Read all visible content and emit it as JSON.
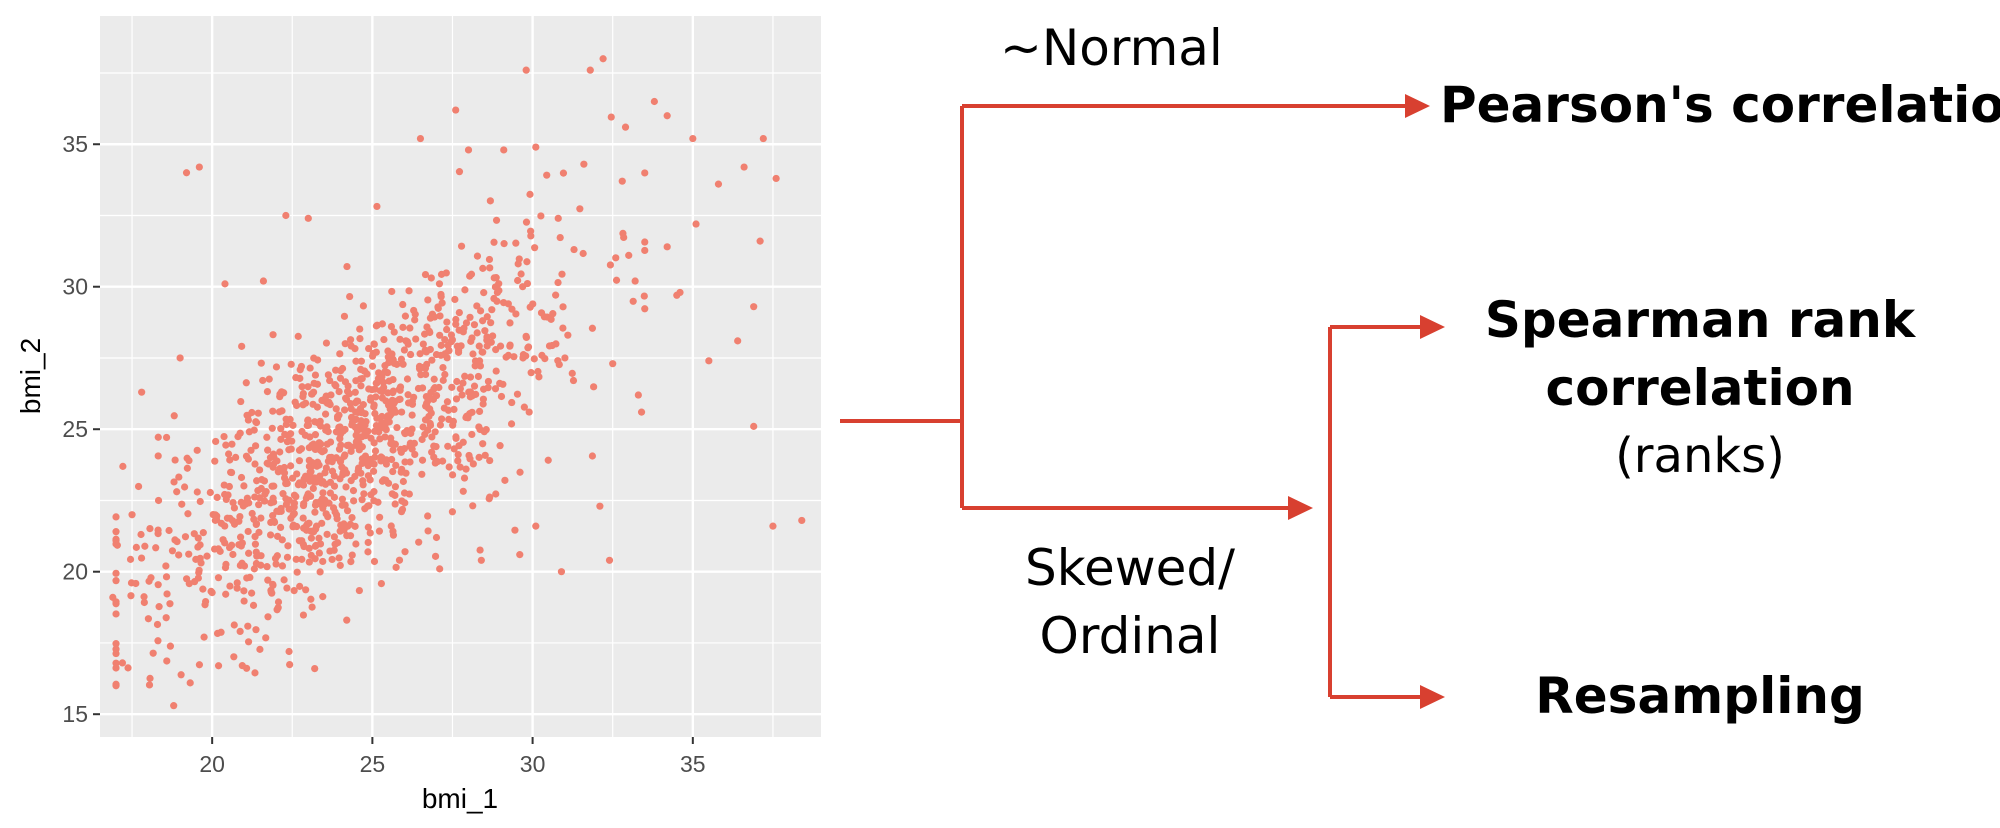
{
  "chart_data": {
    "type": "scatter",
    "xlabel": "bmi_1",
    "ylabel": "bmi_2",
    "xlim": [
      16.5,
      39
    ],
    "ylim": [
      14.2,
      39.5
    ],
    "xticks": [
      20,
      25,
      30,
      35
    ],
    "yticks": [
      15,
      20,
      25,
      30,
      35
    ],
    "grid": true,
    "point_color": "#F08070",
    "panel_color": "#EBEBEB",
    "outliers": [
      [
        19.2,
        34.0
      ],
      [
        19.6,
        34.2
      ],
      [
        29.8,
        37.6
      ],
      [
        32.2,
        38.0
      ],
      [
        31.8,
        37.6
      ],
      [
        37.2,
        35.2
      ],
      [
        37.6,
        33.8
      ],
      [
        34.2,
        36.0
      ],
      [
        35.0,
        35.2
      ],
      [
        36.6,
        34.2
      ],
      [
        35.8,
        33.6
      ],
      [
        37.1,
        31.6
      ],
      [
        38.4,
        21.8
      ],
      [
        37.5,
        21.6
      ],
      [
        36.9,
        25.1
      ],
      [
        36.9,
        29.3
      ],
      [
        33.4,
        25.6
      ],
      [
        33.3,
        26.2
      ],
      [
        32.1,
        22.3
      ],
      [
        32.4,
        20.4
      ],
      [
        30.9,
        20.0
      ],
      [
        24.2,
        18.3
      ],
      [
        23.2,
        16.6
      ],
      [
        18.8,
        15.3
      ],
      [
        20.2,
        16.7
      ],
      [
        16.9,
        19.1
      ],
      [
        17.2,
        16.8
      ],
      [
        17.5,
        22.0
      ],
      [
        19.0,
        27.5
      ],
      [
        17.8,
        26.3
      ],
      [
        26.5,
        35.2
      ],
      [
        27.6,
        36.2
      ],
      [
        28.0,
        34.8
      ],
      [
        29.1,
        34.8
      ],
      [
        30.1,
        34.9
      ],
      [
        22.3,
        32.5
      ],
      [
        23.0,
        32.4
      ],
      [
        20.4,
        30.1
      ],
      [
        21.6,
        30.2
      ],
      [
        35.5,
        27.4
      ],
      [
        34.5,
        29.7
      ],
      [
        27.1,
        20.1
      ],
      [
        28.4,
        20.4
      ],
      [
        30.1,
        21.6
      ],
      [
        29.6,
        20.6
      ],
      [
        32.9,
        35.6
      ],
      [
        33.8,
        36.5
      ],
      [
        31.6,
        34.3
      ],
      [
        30.8,
        32.4
      ],
      [
        34.2,
        31.4
      ],
      [
        35.1,
        32.2
      ],
      [
        36.4,
        28.1
      ],
      [
        33.2,
        30.2
      ],
      [
        33.0,
        31.1
      ],
      [
        34.6,
        29.8
      ],
      [
        32.5,
        27.3
      ],
      [
        31.1,
        28.3
      ],
      [
        29.7,
        27.5
      ],
      [
        27.0,
        21.2
      ],
      [
        22.4,
        17.2
      ]
    ]
  },
  "diagram": {
    "normal_label": "~Normal",
    "skewed_label_line1": "Skewed/",
    "skewed_label_line2": "Ordinal",
    "pearson": "Pearson's correlation",
    "spearman_line1": "Spearman rank",
    "spearman_line2": "correlation",
    "spearman_note": "(ranks)",
    "resampling": "Resampling",
    "arrow_color": "#D84030"
  }
}
